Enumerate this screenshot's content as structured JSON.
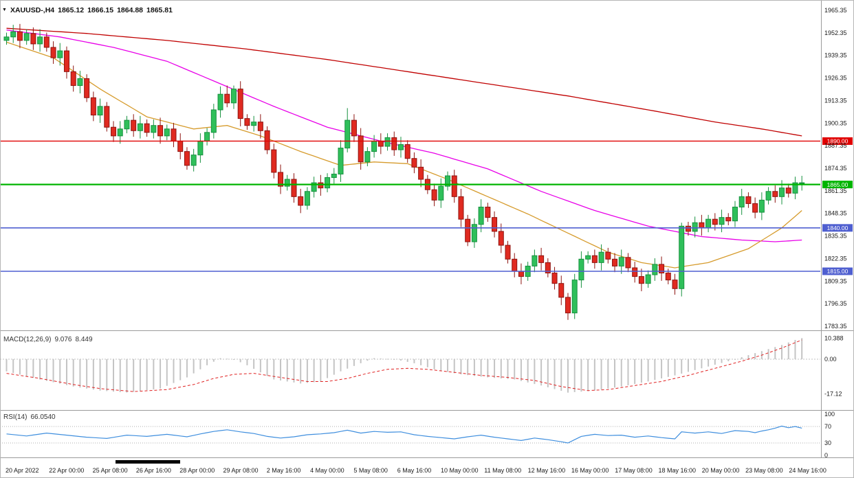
{
  "colors": {
    "background": "#FFFFFF",
    "candle_up_fill": "#2FBF5A",
    "candle_up_stroke": "#17913F",
    "candle_down_fill": "#E02A20",
    "candle_down_stroke": "#8E1410",
    "ma_slow": "#C00000",
    "ma_mid": "#E800E8",
    "ma_fast": "#D69B2C",
    "hline_red": "#E00000",
    "hline_green": "#00B400",
    "hline_blue": "#4F5FD0",
    "macd_hist": "#C4C4C4",
    "macd_signal": "#E02020",
    "rsi_line": "#3E8EDE",
    "axis_text": "#1A1A1A",
    "separator": "#9A9A9A"
  },
  "chart_data": {
    "type": "candlestick",
    "title": "XAUUSD-,H4",
    "symbol": "XAUUSD-",
    "timeframe": "H4",
    "quote": {
      "open": "1865.12",
      "high": "1866.15",
      "low": "1864.88",
      "close": "1865.81"
    },
    "collapse_icon": "▼",
    "y_axis": {
      "top_value": 1965.35,
      "bottom_value": 1783.35,
      "ticks": [
        "1965.35",
        "1952.35",
        "1939.35",
        "1926.35",
        "1913.35",
        "1900.35",
        "1887.35",
        "1874.35",
        "1861.35",
        "1848.35",
        "1835.35",
        "1822.35",
        "1809.35",
        "1796.35",
        "1783.35"
      ]
    },
    "x_axis": {
      "labels": [
        "20 Apr 2022",
        "22 Apr 00:00",
        "25 Apr 08:00",
        "26 Apr 16:00",
        "28 Apr 00:00",
        "29 Apr 08:00",
        "2 May 16:00",
        "4 May 00:00",
        "5 May 08:00",
        "6 May 16:00",
        "10 May 00:00",
        "11 May 08:00",
        "12 May 16:00",
        "16 May 00:00",
        "17 May 08:00",
        "18 May 16:00",
        "20 May 00:00",
        "23 May 08:00",
        "24 May 16:00"
      ]
    },
    "hlines": [
      {
        "value": 1890.0,
        "label": "1890.00",
        "color": "#E00000",
        "width": 1.4
      },
      {
        "value": 1865.0,
        "label": "1865.00",
        "color": "#00B400",
        "width": 2.2
      },
      {
        "value": 1840.0,
        "label": "1840.00",
        "color": "#4F5FD0",
        "width": 1.6
      },
      {
        "value": 1815.0,
        "label": "1815.00",
        "color": "#4F5FD0",
        "width": 1.6
      }
    ],
    "candles": {
      "count": 120,
      "first_open": 1948,
      "default_wick": 2.5,
      "closes": [
        1950,
        1953,
        1948,
        1952,
        1946,
        1950,
        1944,
        1938,
        1942,
        1930,
        1922,
        1926,
        1915,
        1905,
        1910,
        1898,
        1893,
        1897,
        1902,
        1896,
        1900,
        1895,
        1899,
        1893,
        1897,
        1890,
        1884,
        1876,
        1882,
        1890,
        1895,
        1908,
        1917,
        1912,
        1920,
        1903,
        1899,
        1901,
        1896,
        1885,
        1872,
        1864,
        1868,
        1858,
        1853,
        1861,
        1866,
        1863,
        1869,
        1871,
        1886,
        1902,
        1893,
        1878,
        1884,
        1890,
        1887,
        1892,
        1885,
        1888,
        1880,
        1875,
        1868,
        1862,
        1856,
        1864,
        1870,
        1858,
        1845,
        1832,
        1842,
        1852,
        1846,
        1838,
        1830,
        1822,
        1815,
        1812,
        1818,
        1824,
        1820,
        1814,
        1808,
        1800,
        1791,
        1810,
        1822,
        1824,
        1820,
        1826,
        1822,
        1818,
        1823,
        1817,
        1812,
        1808,
        1813,
        1819,
        1814,
        1810,
        1805,
        1841,
        1838,
        1843,
        1840,
        1845,
        1842,
        1846,
        1844,
        1852,
        1858,
        1854,
        1849,
        1856,
        1861,
        1858,
        1863,
        1860,
        1866,
        1866
      ],
      "wick_overrides": {
        "1": {
          "high": 1957
        },
        "9": {
          "low": 1926
        },
        "33": {
          "high": 1922
        },
        "34": {
          "high": 1922
        },
        "51": {
          "high": 1909
        },
        "84": {
          "low": 1787
        },
        "101": {
          "high": 1843
        },
        "119": {
          "high": 1870
        }
      }
    },
    "moving_averages": [
      {
        "name": "ma-slow-red",
        "color": "#C00000",
        "points": [
          [
            0,
            1955
          ],
          [
            12,
            1952
          ],
          [
            24,
            1948
          ],
          [
            36,
            1943
          ],
          [
            48,
            1937
          ],
          [
            60,
            1930
          ],
          [
            72,
            1923
          ],
          [
            84,
            1916
          ],
          [
            96,
            1908
          ],
          [
            106,
            1901
          ],
          [
            113,
            1897
          ],
          [
            119,
            1893
          ]
        ]
      },
      {
        "name": "ma-mid-magenta",
        "color": "#E800E8",
        "points": [
          [
            0,
            1954
          ],
          [
            8,
            1950
          ],
          [
            16,
            1944
          ],
          [
            24,
            1936
          ],
          [
            32,
            1923
          ],
          [
            40,
            1910
          ],
          [
            48,
            1898
          ],
          [
            56,
            1890
          ],
          [
            64,
            1883
          ],
          [
            72,
            1874
          ],
          [
            80,
            1861
          ],
          [
            88,
            1850
          ],
          [
            96,
            1841
          ],
          [
            104,
            1835
          ],
          [
            110,
            1833
          ],
          [
            115,
            1832
          ],
          [
            119,
            1833
          ]
        ]
      },
      {
        "name": "ma-fast-orange",
        "color": "#D69B2C",
        "points": [
          [
            0,
            1947
          ],
          [
            7,
            1938
          ],
          [
            14,
            1920
          ],
          [
            21,
            1904
          ],
          [
            28,
            1897
          ],
          [
            33,
            1899
          ],
          [
            38,
            1893
          ],
          [
            44,
            1884
          ],
          [
            50,
            1876
          ],
          [
            55,
            1878
          ],
          [
            60,
            1877
          ],
          [
            66,
            1868
          ],
          [
            72,
            1858
          ],
          [
            78,
            1848
          ],
          [
            84,
            1837
          ],
          [
            90,
            1826
          ],
          [
            95,
            1820
          ],
          [
            100,
            1817
          ],
          [
            105,
            1820
          ],
          [
            111,
            1828
          ],
          [
            116,
            1840
          ],
          [
            119,
            1850
          ]
        ]
      }
    ],
    "macd": {
      "label": "MACD(12,26,9)",
      "value1": "9.076",
      "value2": "8.449",
      "ticks": [
        {
          "label": "10.388",
          "value": 10.388
        },
        {
          "label": "0.00",
          "value": 0
        },
        {
          "label": "-17.12",
          "value": -17.12
        }
      ],
      "hist_points": [
        [
          0,
          -6
        ],
        [
          5,
          -10
        ],
        [
          10,
          -13.5
        ],
        [
          14,
          -15.5
        ],
        [
          18,
          -16.5
        ],
        [
          23,
          -14.5
        ],
        [
          27,
          -9
        ],
        [
          30,
          -3
        ],
        [
          32,
          0.5
        ],
        [
          34,
          0
        ],
        [
          36,
          -3
        ],
        [
          40,
          -10
        ],
        [
          44,
          -12
        ],
        [
          47,
          -11
        ],
        [
          50,
          -6
        ],
        [
          53,
          -2
        ],
        [
          55,
          0.5
        ],
        [
          58,
          0
        ],
        [
          61,
          -2
        ],
        [
          64,
          -5
        ],
        [
          68,
          -7.5
        ],
        [
          72,
          -9
        ],
        [
          76,
          -10
        ],
        [
          80,
          -13
        ],
        [
          84,
          -16.5
        ],
        [
          88,
          -15.5
        ],
        [
          92,
          -13.5
        ],
        [
          96,
          -11
        ],
        [
          100,
          -8
        ],
        [
          104,
          -4.5
        ],
        [
          108,
          -1
        ],
        [
          111,
          2
        ],
        [
          114,
          5
        ],
        [
          116,
          7
        ],
        [
          118,
          9.5
        ],
        [
          119,
          10.4
        ]
      ],
      "signal_points": [
        [
          0,
          -7
        ],
        [
          5,
          -9.5
        ],
        [
          10,
          -12.5
        ],
        [
          14,
          -14.5
        ],
        [
          19,
          -16
        ],
        [
          24,
          -15
        ],
        [
          28,
          -12.5
        ],
        [
          31,
          -9.5
        ],
        [
          34,
          -7.5
        ],
        [
          37,
          -7
        ],
        [
          41,
          -9
        ],
        [
          45,
          -11
        ],
        [
          48,
          -11
        ],
        [
          51,
          -9.5
        ],
        [
          54,
          -7
        ],
        [
          57,
          -5
        ],
        [
          60,
          -4.5
        ],
        [
          63,
          -5
        ],
        [
          67,
          -6.5
        ],
        [
          71,
          -8
        ],
        [
          75,
          -9
        ],
        [
          79,
          -10.5
        ],
        [
          83,
          -13.5
        ],
        [
          87,
          -15.5
        ],
        [
          90,
          -15
        ],
        [
          94,
          -13
        ],
        [
          98,
          -11
        ],
        [
          102,
          -8
        ],
        [
          106,
          -4.5
        ],
        [
          110,
          -1
        ],
        [
          113,
          2
        ],
        [
          116,
          5.5
        ],
        [
          119,
          9.5
        ]
      ]
    },
    "rsi": {
      "label": "RSI(14)",
      "value": "66.0540",
      "levels": [
        70,
        30
      ],
      "ticks": [
        {
          "label": "100",
          "value": 100
        },
        {
          "label": "70",
          "value": 70
        },
        {
          "label": "30",
          "value": 30
        },
        {
          "label": "0",
          "value": 0
        }
      ],
      "points": [
        [
          0,
          52
        ],
        [
          3,
          47
        ],
        [
          6,
          54
        ],
        [
          9,
          49
        ],
        [
          12,
          44
        ],
        [
          15,
          41
        ],
        [
          18,
          49
        ],
        [
          21,
          46
        ],
        [
          24,
          51
        ],
        [
          27,
          45
        ],
        [
          29,
          52
        ],
        [
          31,
          58
        ],
        [
          33,
          62
        ],
        [
          35,
          57
        ],
        [
          37,
          53
        ],
        [
          39,
          46
        ],
        [
          41,
          42
        ],
        [
          43,
          45
        ],
        [
          45,
          50
        ],
        [
          47,
          52
        ],
        [
          49,
          55
        ],
        [
          51,
          61
        ],
        [
          53,
          54
        ],
        [
          55,
          58
        ],
        [
          57,
          56
        ],
        [
          59,
          57
        ],
        [
          61,
          50
        ],
        [
          63,
          46
        ],
        [
          65,
          43
        ],
        [
          67,
          40
        ],
        [
          69,
          45
        ],
        [
          71,
          49
        ],
        [
          73,
          44
        ],
        [
          75,
          40
        ],
        [
          77,
          36
        ],
        [
          79,
          42
        ],
        [
          81,
          38
        ],
        [
          83,
          33
        ],
        [
          84,
          30
        ],
        [
          86,
          46
        ],
        [
          88,
          51
        ],
        [
          90,
          48
        ],
        [
          92,
          49
        ],
        [
          94,
          44
        ],
        [
          96,
          47
        ],
        [
          98,
          43
        ],
        [
          100,
          40
        ],
        [
          101,
          57
        ],
        [
          103,
          54
        ],
        [
          105,
          57
        ],
        [
          107,
          53
        ],
        [
          109,
          60
        ],
        [
          111,
          58
        ],
        [
          112,
          55
        ],
        [
          113,
          59
        ],
        [
          114,
          62
        ],
        [
          115,
          66
        ],
        [
          116,
          71
        ],
        [
          117,
          67
        ],
        [
          118,
          70
        ],
        [
          119,
          66
        ]
      ]
    }
  }
}
